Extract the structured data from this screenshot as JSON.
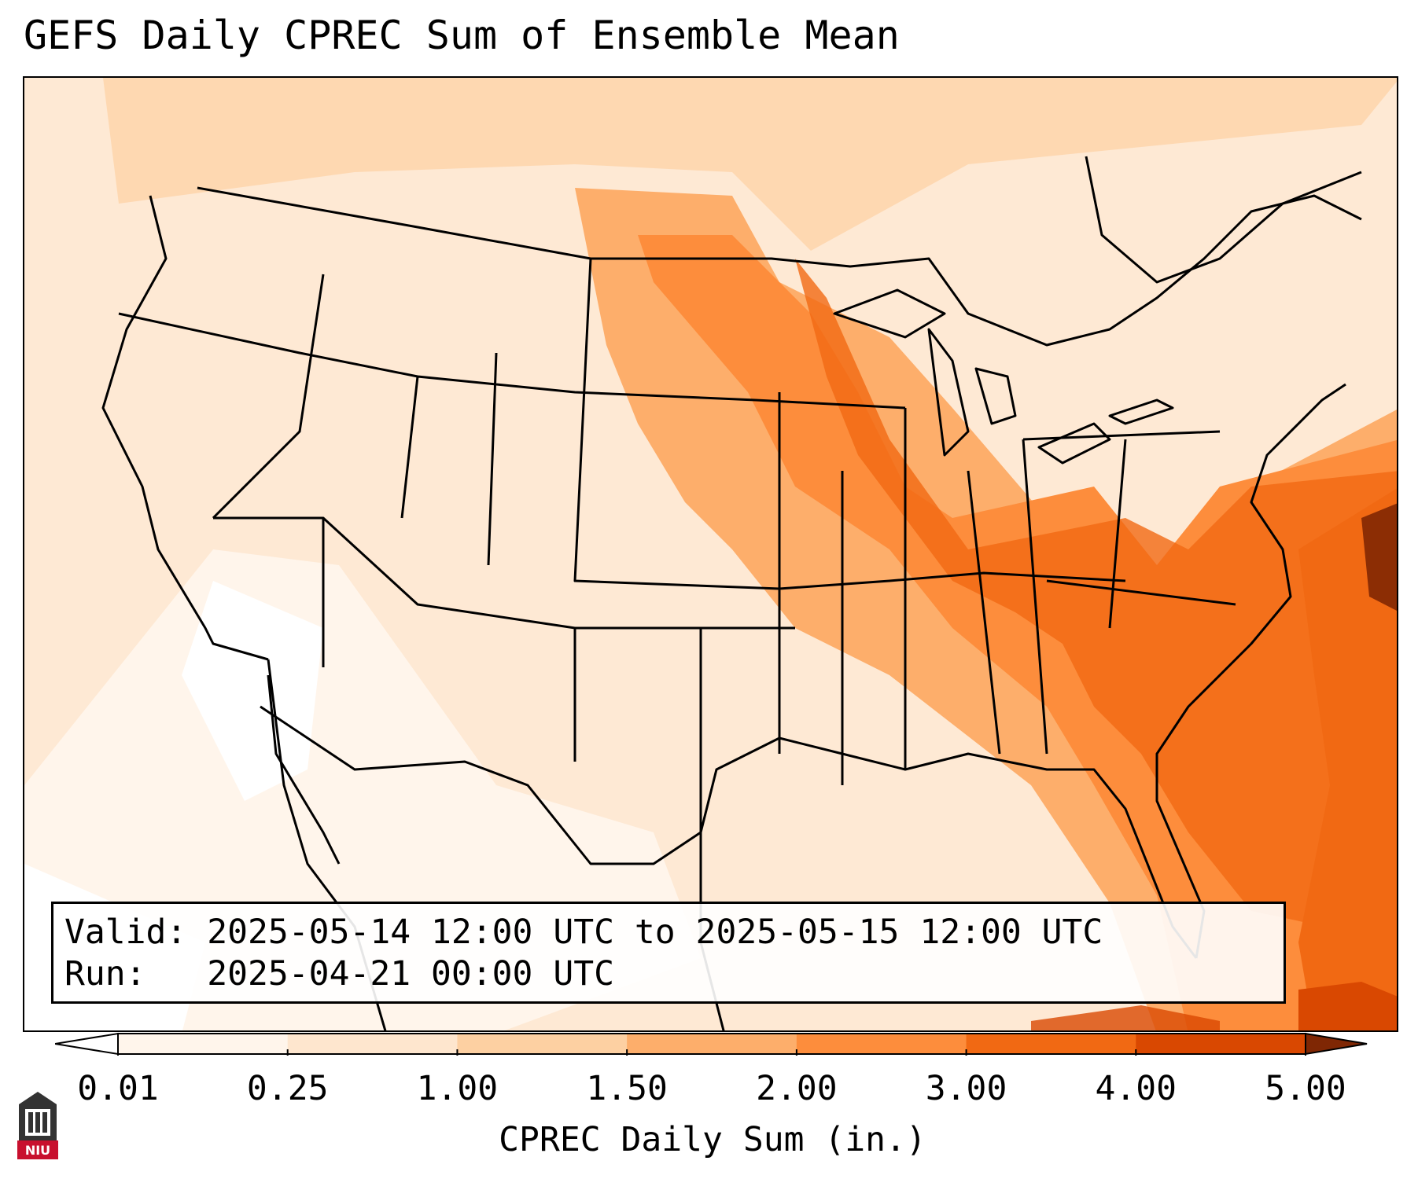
{
  "title": "GEFS Daily CPREC Sum of Ensemble Mean",
  "info": {
    "valid_label": "Valid:",
    "valid_value": "2025-05-14 12:00 UTC to 2025-05-15 12:00 UTC",
    "run_label": "Run:",
    "run_value": "2025-04-21 00:00 UTC"
  },
  "colorbar": {
    "label": "CPREC Daily Sum (in.)",
    "ticks": [
      "0.01",
      "0.25",
      "1.00",
      "1.50",
      "2.00",
      "3.00",
      "4.00",
      "5.00"
    ],
    "colors": [
      "#fff5eb",
      "#fee6ce",
      "#fdd0a2",
      "#fdae6b",
      "#fd8d3c",
      "#f16913",
      "#d94801",
      "#8c2d04"
    ],
    "under_color": "#ffffff",
    "over_color": "#7f2704"
  },
  "logo": {
    "text": "NIU",
    "color": "#c8102e"
  }
}
